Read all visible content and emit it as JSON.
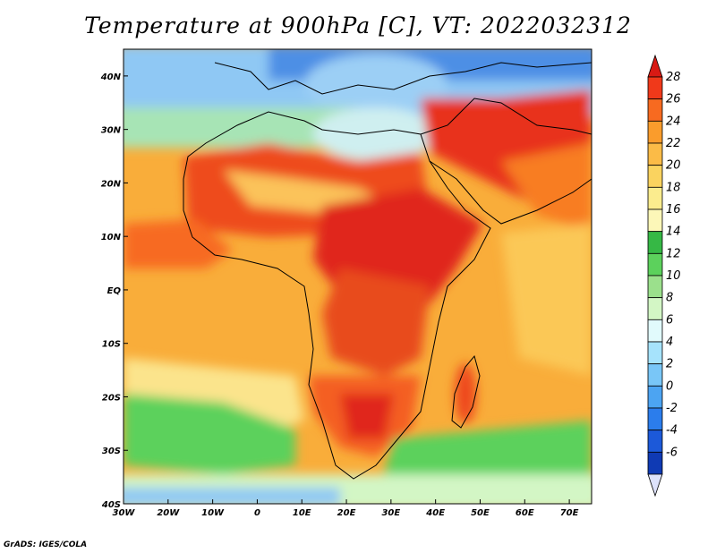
{
  "title": "Temperature at 900hPa [C], VT: 2022032312",
  "credit": "GrADS: IGES/COLA",
  "map": {
    "lon_range": [
      -30,
      75
    ],
    "lat_range": [
      -40,
      45
    ],
    "lon_ticks": [
      "30W",
      "20W",
      "10W",
      "0",
      "10E",
      "20E",
      "30E",
      "40E",
      "50E",
      "60E",
      "70E"
    ],
    "lat_ticks": [
      "40N",
      "30N",
      "20N",
      "10N",
      "EQ",
      "10S",
      "20S",
      "30S",
      "40S"
    ]
  },
  "colorbar": {
    "labels": [
      "28",
      "26",
      "24",
      "22",
      "20",
      "18",
      "16",
      "14",
      "12",
      "10",
      "8",
      "6",
      "4",
      "2",
      "0",
      "-2",
      "-4",
      "-6"
    ],
    "colors": [
      "#d81a14",
      "#f0391a",
      "#f76a20",
      "#fa9c2c",
      "#fbbb47",
      "#fad35f",
      "#fbec8e",
      "#fcf7b8",
      "#36b845",
      "#5cd15c",
      "#9be08c",
      "#d3f6c5",
      "#e1fafc",
      "#a6e3fc",
      "#79c6f7",
      "#4ca4f2",
      "#2b7dec",
      "#1c59d9",
      "#0f3ab4",
      "#0e1a80"
    ]
  }
}
